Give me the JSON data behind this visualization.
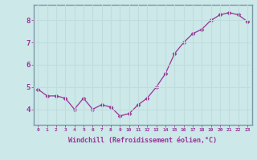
{
  "x": [
    0,
    1,
    2,
    3,
    4,
    5,
    6,
    7,
    8,
    9,
    10,
    11,
    12,
    13,
    14,
    15,
    16,
    17,
    18,
    19,
    20,
    21,
    22,
    23
  ],
  "y": [
    4.9,
    4.6,
    4.6,
    4.5,
    4.0,
    4.5,
    4.0,
    4.2,
    4.1,
    3.7,
    3.8,
    4.2,
    4.5,
    5.0,
    5.6,
    6.5,
    7.0,
    7.4,
    7.6,
    8.0,
    8.25,
    8.35,
    8.25,
    7.95
  ],
  "line_color": "#993399",
  "marker": "D",
  "markersize": 2.5,
  "linewidth": 0.9,
  "xlabel": "Windchill (Refroidissement éolien,°C)",
  "xlabel_fontsize": 6,
  "xtick_labels": [
    "0",
    "1",
    "2",
    "3",
    "4",
    "5",
    "6",
    "7",
    "8",
    "9",
    "10",
    "11",
    "12",
    "13",
    "14",
    "15",
    "16",
    "17",
    "18",
    "19",
    "20",
    "21",
    "22",
    "23"
  ],
  "ytick_labels": [
    "4",
    "5",
    "6",
    "7",
    "8"
  ],
  "yticks": [
    4,
    5,
    6,
    7,
    8
  ],
  "ylim": [
    3.3,
    8.7
  ],
  "xlim": [
    -0.5,
    23.5
  ],
  "background_color": "#cce8e8",
  "grid_color": "#aacccc",
  "spine_color": "#7799aa",
  "tick_color": "#993399",
  "label_color": "#993399"
}
